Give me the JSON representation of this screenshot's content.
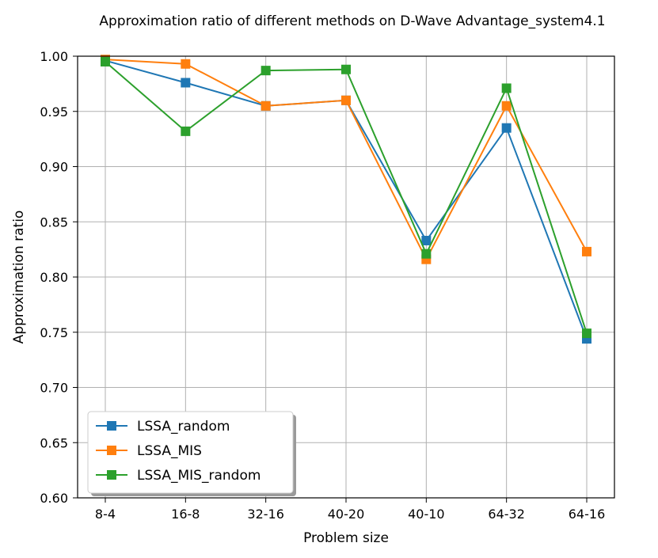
{
  "chart_data": {
    "type": "line",
    "title": "Approximation ratio of different methods on D-Wave Advantage_system4.1",
    "xlabel": "Problem size",
    "ylabel": "Approximation ratio",
    "categories": [
      "8-4",
      "16-8",
      "32-16",
      "40-20",
      "40-10",
      "64-32",
      "64-16"
    ],
    "ylim": [
      0.6,
      1.0
    ],
    "yticks": [
      "0.60",
      "0.65",
      "0.70",
      "0.75",
      "0.80",
      "0.85",
      "0.90",
      "0.95",
      "1.00"
    ],
    "grid": true,
    "legend_position": "lower-left",
    "series": [
      {
        "name": "LSSA_random",
        "color": "#1f77b4",
        "marker": "square",
        "values": [
          0.996,
          0.976,
          0.955,
          0.96,
          0.833,
          0.935,
          0.744
        ]
      },
      {
        "name": "LSSA_MIS",
        "color": "#ff7f0e",
        "marker": "square",
        "values": [
          0.997,
          0.993,
          0.955,
          0.96,
          0.816,
          0.955,
          0.823
        ]
      },
      {
        "name": "LSSA_MIS_random",
        "color": "#2ca02c",
        "marker": "square",
        "values": [
          0.995,
          0.932,
          0.987,
          0.988,
          0.821,
          0.971,
          0.749
        ]
      }
    ]
  }
}
